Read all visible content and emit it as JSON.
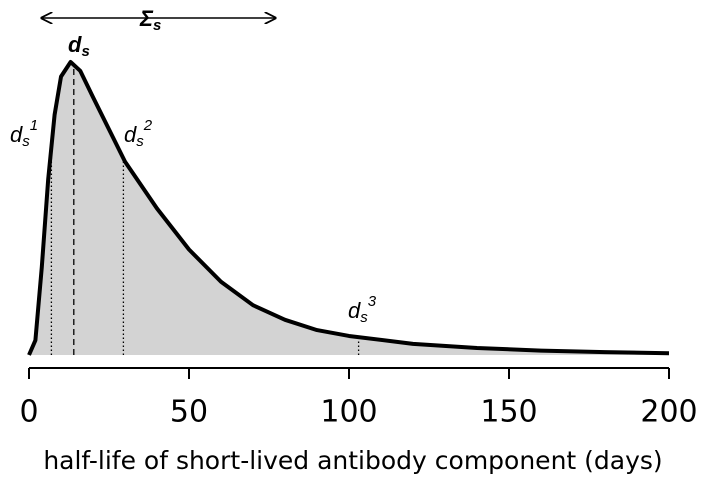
{
  "chart_data": {
    "type": "area",
    "x_label": "half-life of short-lived antibody component (days)",
    "x": [
      0,
      2,
      4,
      6,
      8,
      10,
      13,
      16,
      20,
      25,
      30,
      40,
      50,
      60,
      70,
      80,
      90,
      100,
      120,
      140,
      160,
      180,
      200
    ],
    "values": [
      0,
      0.05,
      0.3,
      0.6,
      0.82,
      0.95,
      1.0,
      0.97,
      0.88,
      0.77,
      0.66,
      0.5,
      0.36,
      0.25,
      0.17,
      0.12,
      0.085,
      0.065,
      0.038,
      0.024,
      0.015,
      0.01,
      0.006
    ],
    "color": "#d3d3d3",
    "line_color": "#000000",
    "xlim": [
      0,
      200
    ],
    "ylim": [
      0,
      1
    ],
    "xticks": [
      0,
      50,
      100,
      150,
      200
    ],
    "span": {
      "label": {
        "base": "Σ",
        "sub": "s"
      },
      "x": [
        4,
        77
      ]
    },
    "markers": [
      {
        "label": {
          "base": "d",
          "sub": "s"
        },
        "x": 14,
        "style": "dashed"
      },
      {
        "label": {
          "base": "d",
          "sub": "s",
          "sup": "1"
        },
        "x": 7,
        "style": "dotted"
      },
      {
        "label": {
          "base": "d",
          "sub": "s",
          "sup": "2"
        },
        "x": 29.5,
        "style": "dotted"
      },
      {
        "label": {
          "base": "d",
          "sub": "s",
          "sup": "3"
        },
        "x": 103,
        "style": "dotted"
      }
    ]
  }
}
